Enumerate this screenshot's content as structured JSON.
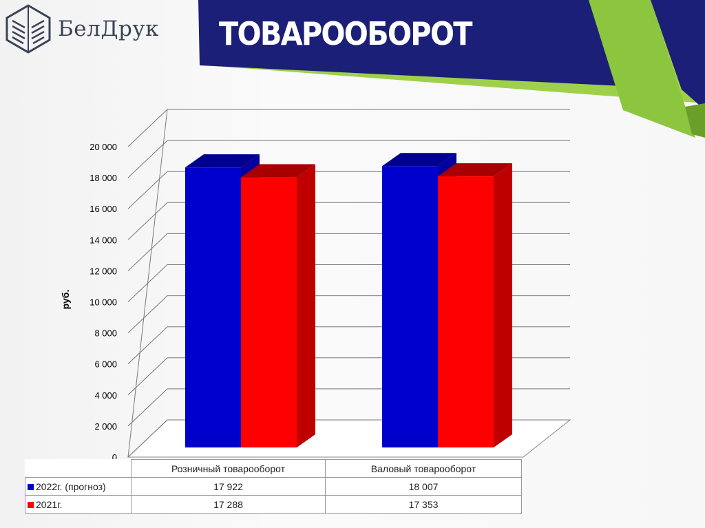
{
  "header": {
    "logo_text": "БелДрук",
    "title": "ТОВАРООБОРОТ"
  },
  "colors": {
    "navy": "#1b1f78",
    "green": "#8cc63f",
    "series_2022": "#0000cc",
    "series_2021": "#ff0000"
  },
  "chart_data": {
    "type": "bar",
    "style": "3d-clustered-column",
    "categories": [
      "Розничный товарооборот",
      "Валовый товарооборот"
    ],
    "series": [
      {
        "name": "2022г. (прогноз)",
        "values": [
          17922,
          18007
        ],
        "value_labels": [
          "17 922",
          "18 007"
        ],
        "color": "#0000cc"
      },
      {
        "name": "2021г.",
        "values": [
          17288,
          17353
        ],
        "value_labels": [
          "17 288",
          "17 353"
        ],
        "color": "#ff0000"
      }
    ],
    "ylabel": "руб.",
    "ylim": [
      0,
      20000
    ],
    "yticks": [
      "0",
      "2 000",
      "4 000",
      "6 000",
      "8 000",
      "10 000",
      "12 000",
      "14 000",
      "16 000",
      "18 000",
      "20 000"
    ],
    "grid": true,
    "legend": "data-table"
  }
}
